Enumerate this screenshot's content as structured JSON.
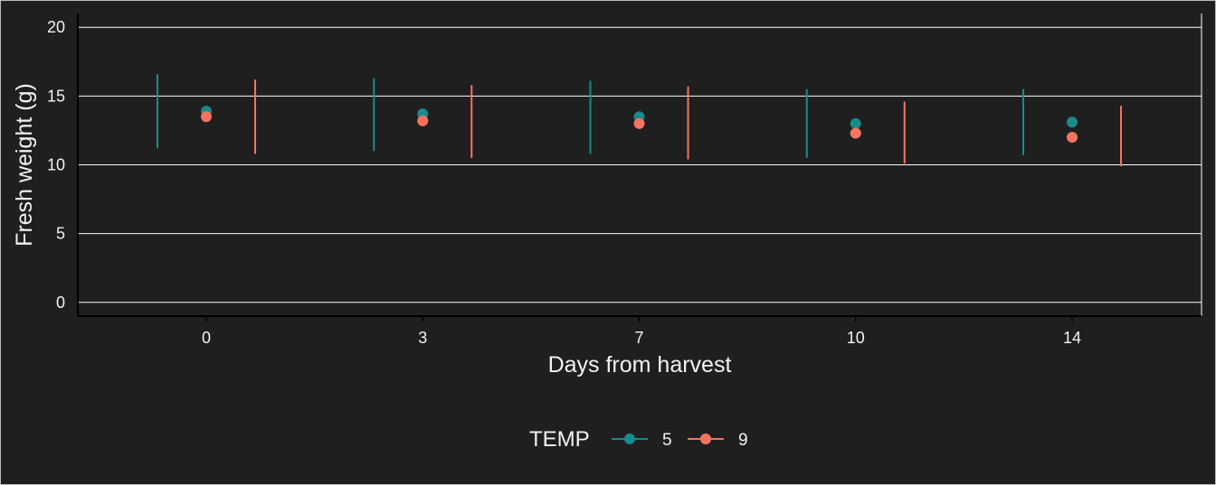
{
  "chart_data": {
    "type": "scatter",
    "title": "",
    "xlabel": "Days from harvest",
    "ylabel": "Fresh weight (g)",
    "categories": [
      "0",
      "3",
      "7",
      "10",
      "14"
    ],
    "ylim": [
      -1,
      21
    ],
    "yticks": [
      0,
      5,
      10,
      15,
      20
    ],
    "grid": true,
    "legend": {
      "title": "TEMP",
      "placement": "bottom",
      "entries": [
        "5",
        "9"
      ]
    },
    "series": [
      {
        "name": "5",
        "color": "#1a8a8a",
        "values": [
          13.9,
          13.7,
          13.5,
          13.0,
          13.1
        ],
        "error_low": [
          11.2,
          11.0,
          10.8,
          10.5,
          10.7
        ],
        "error_high": [
          16.6,
          16.3,
          16.1,
          15.5,
          15.5
        ]
      },
      {
        "name": "9",
        "color": "#f8735f",
        "values": [
          13.5,
          13.2,
          13.0,
          12.3,
          12.0
        ],
        "error_low": [
          10.8,
          10.5,
          10.4,
          10.1,
          9.9
        ],
        "error_high": [
          16.2,
          15.8,
          15.7,
          14.6,
          14.3
        ]
      }
    ]
  }
}
